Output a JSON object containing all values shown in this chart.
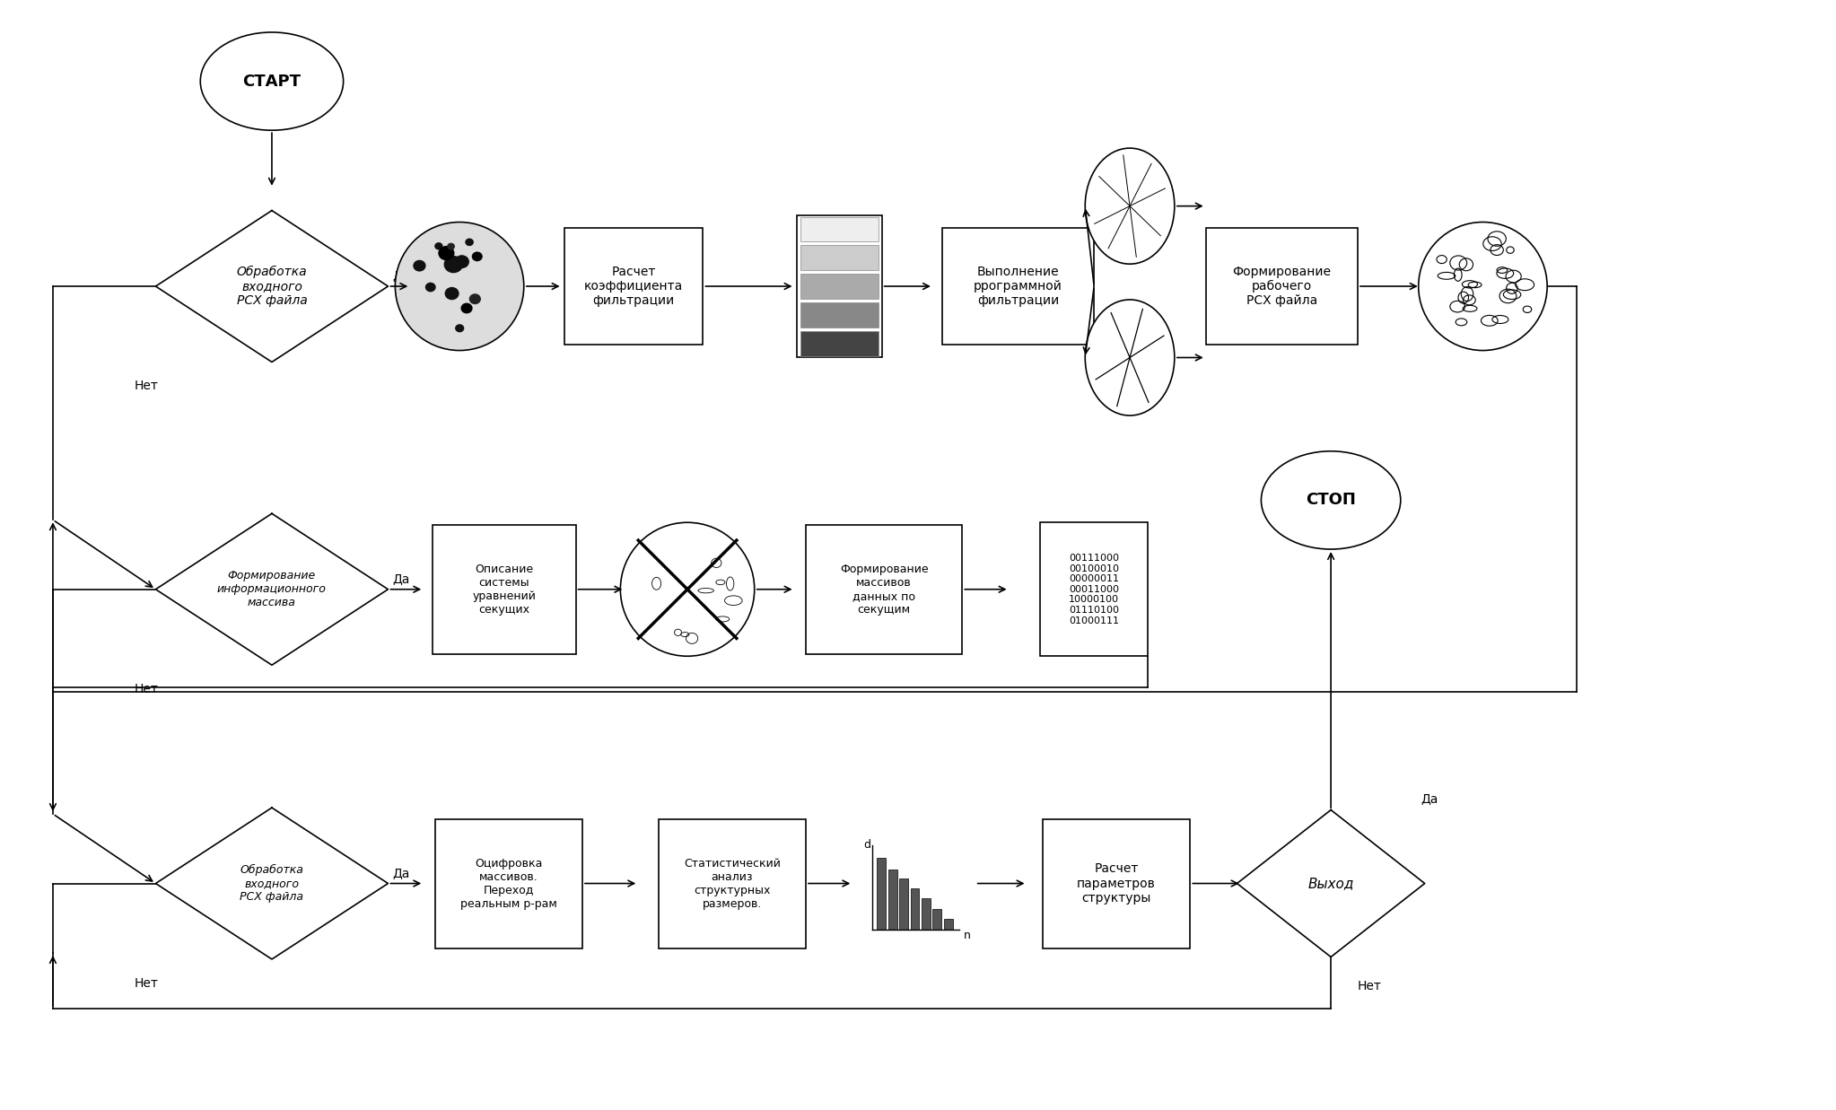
{
  "bg_color": "#ffffff",
  "lw": 1.2,
  "start_label": "СТАРТ",
  "stop_label": "СТОП",
  "d1_label": "Обработка\nвходного\nРСХ файла",
  "d2_label": "Формирование\nинформационного\nмассива",
  "d3_label": "Обработка\nвходного\nРСХ файла",
  "box1_label": "Расчет\nкоэффициента\nфильтрации",
  "box2_label": "Выполнение\npрограммной\nфильтрации",
  "box3_label": "Формирование\nрабочего\nРСХ файла",
  "box4_label": "Описание\nсистемы\nуравнений\nсекущих",
  "box5_label": "Формирование\nмассивов\nданных по\nсекущим",
  "box6_label": "Оцифровка\nмассивов.\nПереход\nреальным р-рам",
  "box7_label": "Статистический\nанализ\nструктурных\nразмеров.",
  "box8_label": "Расчет\nпараметров\nструктуры",
  "exit_label": "Выход",
  "yes_label": "Да",
  "no_label": "Нет",
  "bin_text": "00111000\n00100010\n00000011\n00011000\n10000100\n01110100\n01000111",
  "band_colors": [
    "#444444",
    "#888888",
    "#aaaaaa",
    "#cccccc",
    "#eeeeee"
  ],
  "bar_vals": [
    0.95,
    0.8,
    0.68,
    0.55,
    0.42,
    0.28,
    0.15
  ]
}
